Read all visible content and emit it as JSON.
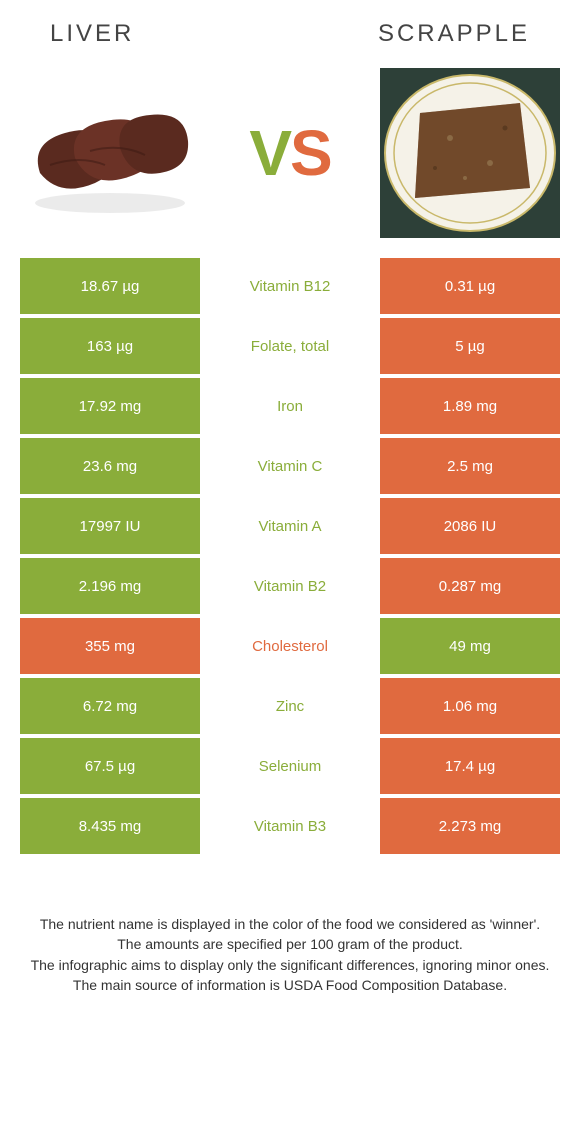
{
  "titles": {
    "left": "LIVER",
    "right": "SCRAPPLE"
  },
  "vs": {
    "v": "V",
    "s": "S"
  },
  "colors": {
    "green": "#8aad3a",
    "orange": "#e06a3f",
    "text": "#333333"
  },
  "rows": [
    {
      "left": "18.67 µg",
      "label": "Vitamin B12",
      "right": "0.31 µg",
      "winner": "left"
    },
    {
      "left": "163 µg",
      "label": "Folate, total",
      "right": "5 µg",
      "winner": "left"
    },
    {
      "left": "17.92 mg",
      "label": "Iron",
      "right": "1.89 mg",
      "winner": "left"
    },
    {
      "left": "23.6 mg",
      "label": "Vitamin C",
      "right": "2.5 mg",
      "winner": "left"
    },
    {
      "left": "17997 IU",
      "label": "Vitamin A",
      "right": "2086 IU",
      "winner": "left"
    },
    {
      "left": "2.196 mg",
      "label": "Vitamin B2",
      "right": "0.287 mg",
      "winner": "left"
    },
    {
      "left": "355 mg",
      "label": "Cholesterol",
      "right": "49 mg",
      "winner": "right"
    },
    {
      "left": "6.72 mg",
      "label": "Zinc",
      "right": "1.06 mg",
      "winner": "left"
    },
    {
      "left": "67.5 µg",
      "label": "Selenium",
      "right": "17.4 µg",
      "winner": "left"
    },
    {
      "left": "8.435 mg",
      "label": "Vitamin B3",
      "right": "2.273 mg",
      "winner": "left"
    }
  ],
  "footnotes": [
    "The nutrient name is displayed in the color of the food we considered as 'winner'.",
    "The amounts are specified per 100 gram of the product.",
    "The infographic aims to display only the significant differences, ignoring minor ones.",
    "The main source of information is USDA Food Composition Database."
  ]
}
